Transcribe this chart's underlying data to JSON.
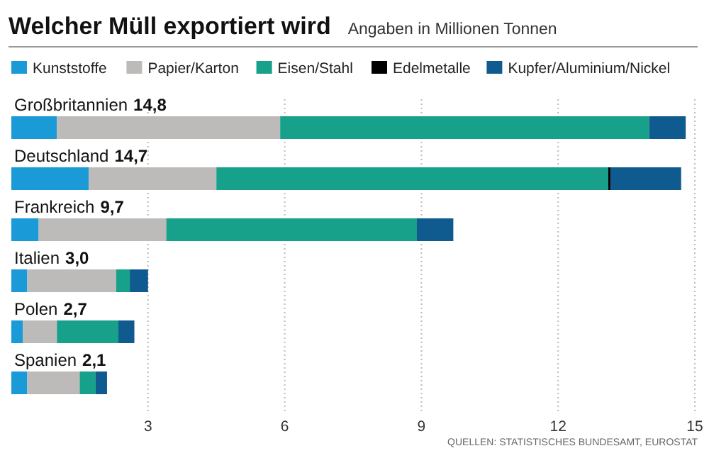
{
  "chart_data": {
    "type": "bar",
    "orientation": "horizontal",
    "stacked": true,
    "title": "Welcher Müll exportiert wird",
    "subtitle": "Angaben in Millionen Tonnen",
    "categories": [
      "Großbritannien",
      "Deutschland",
      "Frankreich",
      "Italien",
      "Polen",
      "Spanien"
    ],
    "series": [
      {
        "name": "Kunststoffe",
        "color": "#1a9ad6",
        "values": [
          1.0,
          1.7,
          0.6,
          0.35,
          0.25,
          0.35
        ]
      },
      {
        "name": "Papier/Karton",
        "color": "#bdbbb9",
        "values": [
          4.9,
          2.8,
          2.8,
          1.95,
          0.75,
          1.15
        ]
      },
      {
        "name": "Eisen/Stahl",
        "color": "#17a08a",
        "values": [
          8.1,
          8.6,
          5.5,
          0.3,
          1.35,
          0.35
        ]
      },
      {
        "name": "Edelmetalle",
        "color": "#000000",
        "values": [
          0,
          0.05,
          0,
          0,
          0,
          0
        ]
      },
      {
        "name": "Kupfer/Aluminium/Nickel",
        "color": "#0f5a8e",
        "values": [
          0.8,
          1.55,
          0.8,
          0.4,
          0.35,
          0.25
        ]
      }
    ],
    "totals": [
      "14,8",
      "14,7",
      "9,7",
      "3,0",
      "2,7",
      "2,1"
    ],
    "xlim": [
      0,
      15
    ],
    "xticks": [
      3,
      6,
      9,
      12,
      15
    ],
    "grid": "x",
    "legend": "top",
    "annotations": [
      "QUELLEN: STATISTISCHES BUNDESAMT, EUROSTAT"
    ]
  }
}
